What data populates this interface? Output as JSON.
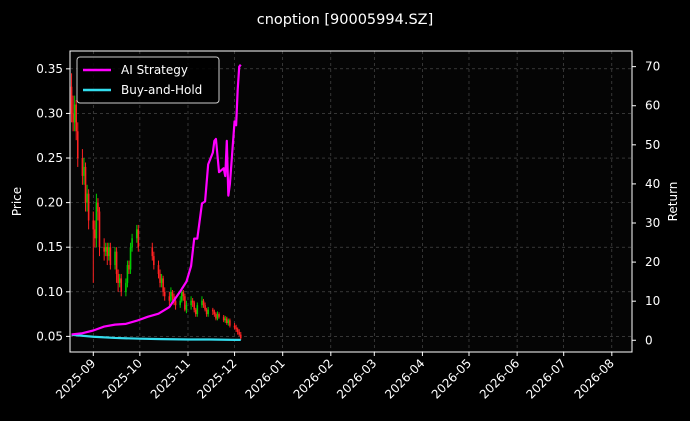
{
  "chart_data": {
    "type": "line",
    "title": "cnoption [90005994.SZ]",
    "ylabel_left": "Price",
    "ylabel_right": "Return",
    "xlim": [
      "2025-08-17",
      "2026-08-14"
    ],
    "ylim_left": [
      0.0325,
      0.37
    ],
    "ylim_right": [
      -3,
      74
    ],
    "grid": true,
    "legend_position": "top-left",
    "x_ticks": [
      "2025-09",
      "2025-10",
      "2025-11",
      "2025-12",
      "2026-01",
      "2026-02",
      "2026-03",
      "2026-04",
      "2026-05",
      "2026-06",
      "2026-07",
      "2026-08"
    ],
    "x_tick_dates": [
      "2025-09-01",
      "2025-10-01",
      "2025-11-01",
      "2025-12-01",
      "2026-01-01",
      "2026-02-01",
      "2026-03-01",
      "2026-04-01",
      "2026-05-01",
      "2026-06-01",
      "2026-07-01",
      "2026-08-01"
    ],
    "y_ticks_left": [
      "0.05",
      "0.10",
      "0.15",
      "0.20",
      "0.25",
      "0.30",
      "0.35"
    ],
    "y_ticks_right": [
      "0",
      "10",
      "20",
      "30",
      "40",
      "50",
      "60",
      "70"
    ],
    "series": [
      {
        "name": "AI Strategy",
        "color": "#ff00ff",
        "axis": "right",
        "x": [
          "2025-08-18",
          "2025-08-25",
          "2025-09-01",
          "2025-09-08",
          "2025-09-15",
          "2025-09-22",
          "2025-09-29",
          "2025-10-06",
          "2025-10-13",
          "2025-10-20",
          "2025-10-27",
          "2025-10-31",
          "2025-11-03",
          "2025-11-05",
          "2025-11-07",
          "2025-11-10",
          "2025-11-12",
          "2025-11-14",
          "2025-11-17",
          "2025-11-18",
          "2025-11-19",
          "2025-11-21",
          "2025-11-24",
          "2025-11-25",
          "2025-11-26",
          "2025-11-27",
          "2025-11-28",
          "2025-12-01",
          "2025-12-02",
          "2025-12-03",
          "2025-12-04",
          "2025-12-05"
        ],
        "y": [
          1.5,
          1.8,
          2.5,
          3.5,
          4.0,
          4.2,
          5.0,
          6.0,
          6.8,
          8.5,
          12.5,
          15,
          19,
          26,
          26,
          35,
          35.5,
          45,
          48,
          51,
          51.5,
          43,
          44,
          42,
          51,
          37,
          40,
          56,
          55,
          64,
          70,
          70.5
        ]
      },
      {
        "name": "Buy-and-Hold",
        "color": "#33ddee",
        "axis": "right",
        "x": [
          "2025-08-18",
          "2025-09-01",
          "2025-09-15",
          "2025-10-01",
          "2025-10-15",
          "2025-11-01",
          "2025-11-15",
          "2025-12-01",
          "2025-12-05"
        ],
        "y": [
          1.4,
          0.9,
          0.6,
          0.4,
          0.3,
          0.2,
          0.2,
          0.1,
          0.1
        ]
      }
    ],
    "candles": {
      "axis": "left",
      "up_color": "#00cc00",
      "down_color": "#ff2222",
      "dates": [
        "2025-08-18",
        "2025-08-19",
        "2025-08-20",
        "2025-08-21",
        "2025-08-22",
        "2025-08-25",
        "2025-08-26",
        "2025-08-27",
        "2025-08-28",
        "2025-08-29",
        "2025-09-01",
        "2025-09-02",
        "2025-09-03",
        "2025-09-04",
        "2025-09-05",
        "2025-09-08",
        "2025-09-09",
        "2025-09-10",
        "2025-09-11",
        "2025-09-12",
        "2025-09-15",
        "2025-09-16",
        "2025-09-17",
        "2025-09-18",
        "2025-09-19",
        "2025-09-22",
        "2025-09-23",
        "2025-09-24",
        "2025-09-25",
        "2025-09-26",
        "2025-09-29",
        "2025-09-30",
        "2025-10-09",
        "2025-10-10",
        "2025-10-13",
        "2025-10-14",
        "2025-10-15",
        "2025-10-16",
        "2025-10-17",
        "2025-10-20",
        "2025-10-21",
        "2025-10-22",
        "2025-10-23",
        "2025-10-24",
        "2025-10-27",
        "2025-10-28",
        "2025-10-29",
        "2025-10-30",
        "2025-10-31",
        "2025-11-03",
        "2025-11-04",
        "2025-11-05",
        "2025-11-06",
        "2025-11-07",
        "2025-11-10",
        "2025-11-11",
        "2025-11-12",
        "2025-11-13",
        "2025-11-14",
        "2025-11-17",
        "2025-11-18",
        "2025-11-19",
        "2025-11-20",
        "2025-11-21",
        "2025-11-24",
        "2025-11-25",
        "2025-11-26",
        "2025-11-27",
        "2025-11-28",
        "2025-12-01",
        "2025-12-02",
        "2025-12-03",
        "2025-12-04",
        "2025-12-05"
      ],
      "open": [
        0.33,
        0.3,
        0.29,
        0.31,
        0.28,
        0.25,
        0.23,
        0.24,
        0.2,
        0.21,
        0.18,
        0.17,
        0.16,
        0.2,
        0.19,
        0.15,
        0.145,
        0.15,
        0.14,
        0.15,
        0.13,
        0.145,
        0.12,
        0.11,
        0.115,
        0.1,
        0.11,
        0.13,
        0.125,
        0.15,
        0.16,
        0.17,
        0.15,
        0.14,
        0.13,
        0.12,
        0.11,
        0.115,
        0.1,
        0.095,
        0.09,
        0.1,
        0.095,
        0.09,
        0.085,
        0.09,
        0.1,
        0.095,
        0.08,
        0.085,
        0.09,
        0.088,
        0.08,
        0.075,
        0.085,
        0.09,
        0.085,
        0.08,
        0.075,
        0.08,
        0.078,
        0.075,
        0.07,
        0.075,
        0.072,
        0.068,
        0.07,
        0.065,
        0.068,
        0.062,
        0.06,
        0.058,
        0.055,
        0.052
      ],
      "close": [
        0.3,
        0.29,
        0.31,
        0.28,
        0.25,
        0.23,
        0.24,
        0.2,
        0.21,
        0.18,
        0.17,
        0.16,
        0.2,
        0.19,
        0.15,
        0.145,
        0.15,
        0.14,
        0.15,
        0.13,
        0.145,
        0.12,
        0.11,
        0.115,
        0.1,
        0.11,
        0.13,
        0.125,
        0.15,
        0.16,
        0.17,
        0.15,
        0.14,
        0.13,
        0.12,
        0.11,
        0.115,
        0.1,
        0.095,
        0.09,
        0.1,
        0.095,
        0.09,
        0.085,
        0.09,
        0.1,
        0.095,
        0.08,
        0.085,
        0.09,
        0.088,
        0.08,
        0.075,
        0.085,
        0.09,
        0.085,
        0.08,
        0.075,
        0.08,
        0.078,
        0.075,
        0.07,
        0.075,
        0.072,
        0.068,
        0.07,
        0.065,
        0.068,
        0.062,
        0.06,
        0.058,
        0.055,
        0.052,
        0.048
      ],
      "high": [
        0.345,
        0.32,
        0.32,
        0.315,
        0.29,
        0.26,
        0.25,
        0.245,
        0.22,
        0.215,
        0.19,
        0.18,
        0.21,
        0.205,
        0.195,
        0.16,
        0.155,
        0.155,
        0.155,
        0.155,
        0.15,
        0.15,
        0.125,
        0.12,
        0.12,
        0.115,
        0.135,
        0.135,
        0.155,
        0.165,
        0.175,
        0.175,
        0.155,
        0.145,
        0.135,
        0.125,
        0.12,
        0.118,
        0.105,
        0.1,
        0.105,
        0.102,
        0.098,
        0.092,
        0.095,
        0.105,
        0.102,
        0.098,
        0.09,
        0.095,
        0.093,
        0.09,
        0.082,
        0.088,
        0.095,
        0.092,
        0.088,
        0.082,
        0.083,
        0.082,
        0.08,
        0.077,
        0.078,
        0.077,
        0.074,
        0.073,
        0.072,
        0.07,
        0.07,
        0.065,
        0.063,
        0.06,
        0.058,
        0.055
      ],
      "low": [
        0.29,
        0.28,
        0.28,
        0.27,
        0.24,
        0.22,
        0.22,
        0.19,
        0.19,
        0.17,
        0.11,
        0.15,
        0.15,
        0.18,
        0.14,
        0.135,
        0.14,
        0.13,
        0.135,
        0.125,
        0.125,
        0.11,
        0.1,
        0.105,
        0.095,
        0.095,
        0.105,
        0.12,
        0.12,
        0.145,
        0.155,
        0.145,
        0.135,
        0.125,
        0.115,
        0.105,
        0.105,
        0.095,
        0.09,
        0.085,
        0.088,
        0.09,
        0.085,
        0.08,
        0.082,
        0.088,
        0.09,
        0.078,
        0.076,
        0.08,
        0.083,
        0.077,
        0.072,
        0.072,
        0.082,
        0.082,
        0.078,
        0.072,
        0.072,
        0.074,
        0.072,
        0.068,
        0.068,
        0.07,
        0.066,
        0.065,
        0.063,
        0.062,
        0.06,
        0.058,
        0.055,
        0.052,
        0.05,
        0.046
      ]
    }
  }
}
